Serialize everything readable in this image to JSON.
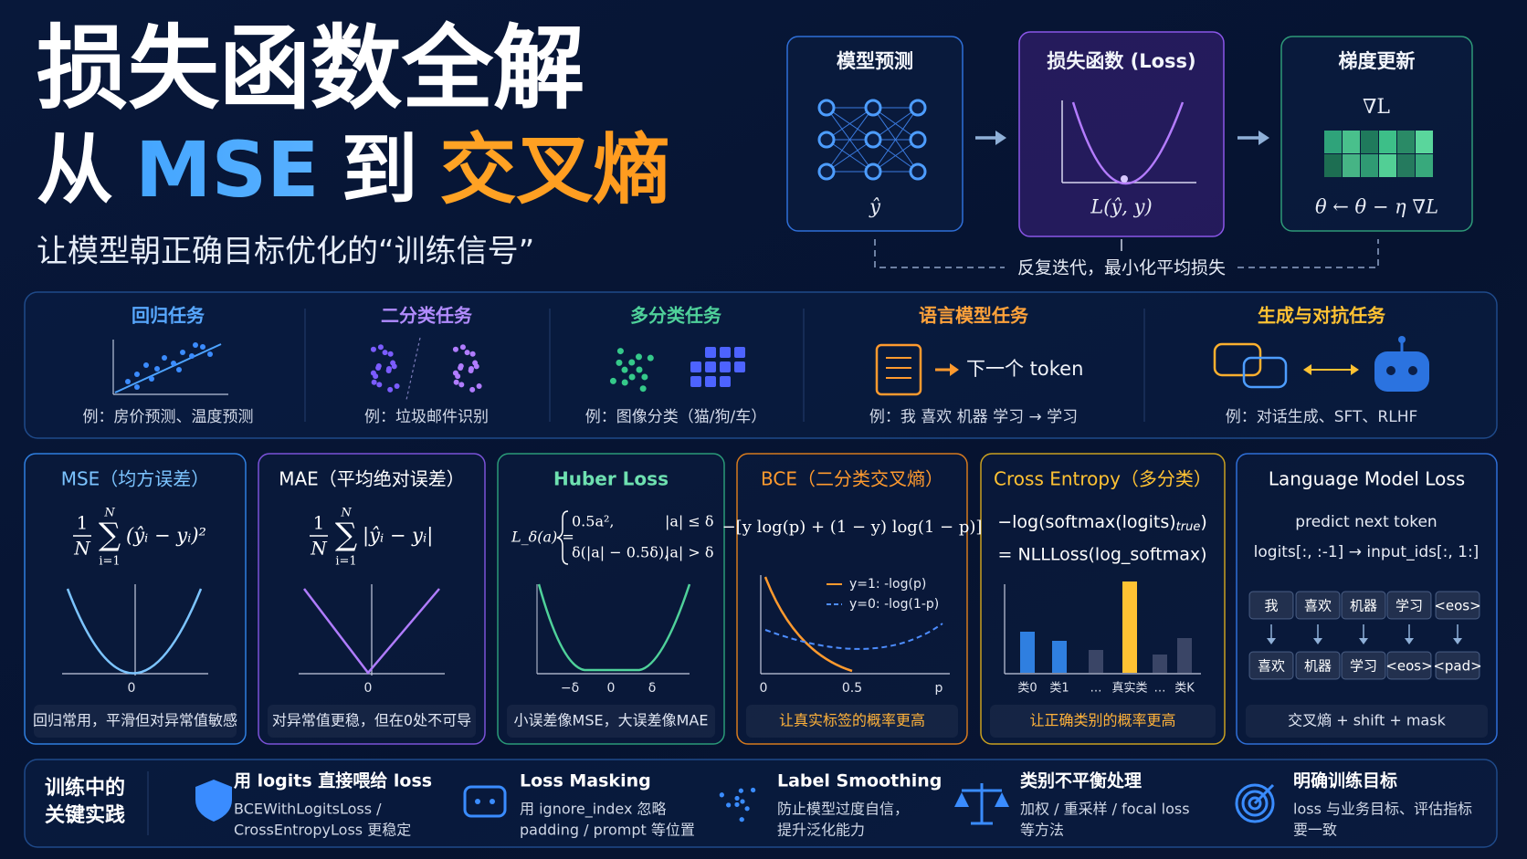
{
  "header": {
    "title": "损失函数全解",
    "title_line2": {
      "from": "从",
      "start": "MSE",
      "to": "到",
      "end": "交叉熵"
    },
    "subtitle": "让模型朝正确目标优化的“训练信号”"
  },
  "pipeline": {
    "steps": [
      {
        "title": "模型预测",
        "output": "ŷ"
      },
      {
        "title": "损失函数 (Loss)",
        "output": "L(ŷ, y)"
      },
      {
        "title": "梯度更新",
        "gradient": "∇L",
        "output": "θ ← θ − η ∇L"
      }
    ],
    "loop_label": "反复迭代，最小化平均损失"
  },
  "tasks": [
    {
      "title": "回归任务",
      "example": "例：房价预测、温度预测"
    },
    {
      "title": "二分类任务",
      "example": "例：垃圾邮件识别"
    },
    {
      "title": "多分类任务",
      "example": "例：图像分类（猫/狗/车）"
    },
    {
      "title": "语言模型任务",
      "illustration": "下一个 token",
      "example": "例：我 喜欢 机器 学习 → 学习"
    },
    {
      "title": "生成与对抗任务",
      "example": "例：对话生成、SFT、RLHF"
    }
  ],
  "losses": [
    {
      "title": "MSE（均方误差）",
      "formula": {
        "numerator": "1",
        "denominator": "N",
        "sum_top": "N",
        "sum": "∑",
        "sum_bottom": "i=1",
        "term": "(ŷᵢ − yᵢ)²"
      },
      "x_labels": [
        "0"
      ],
      "footer": "回归常用，平滑但对异常值敏感"
    },
    {
      "title": "MAE（平均绝对误差）",
      "formula": {
        "numerator": "1",
        "denominator": "N",
        "sum_top": "N",
        "sum": "∑",
        "sum_bottom": "i=1",
        "term": "|ŷᵢ − yᵢ|"
      },
      "x_labels": [
        "0"
      ],
      "footer": "对异常值更稳，但在0处不可导"
    },
    {
      "title": "Huber Loss",
      "formula": {
        "lhs": "L_δ(a) =",
        "cases": [
          [
            "0.5a²,",
            "|a| ≤ δ"
          ],
          [
            "δ(|a| − 0.5δ),",
            "|a| > δ"
          ]
        ]
      },
      "x_labels": [
        "−δ",
        "0",
        "δ"
      ],
      "footer": "小误差像MSE，大误差像MAE"
    },
    {
      "title": "BCE（二分类交叉熵）",
      "formula": "−[y log(p) + (1 − y) log(1 − p)]",
      "legend": [
        "y=1: -log(p)",
        "y=0: -log(1-p)"
      ],
      "x_labels": [
        "0",
        "0.5",
        "p"
      ],
      "footer": "让真实标签的概率更高"
    },
    {
      "title": "Cross Entropy（多分类）",
      "formula": {
        "main": "−log(softmax(logits)",
        "subscript": "true",
        "close": ")",
        "second": "= NLLLoss(log_softmax)"
      },
      "x_labels": [
        "类0",
        "类1",
        "…",
        "真实类",
        "…",
        "类K"
      ],
      "footer": "让正确类别的概率更高"
    },
    {
      "title": "Language Model Loss",
      "subtitle": "predict next token",
      "formula": "logits[:, :-1] → input_ids[:, 1:]",
      "tokens_input": [
        "我",
        "喜欢",
        "机器",
        "学习",
        "<eos>"
      ],
      "tokens_target": [
        "喜欢",
        "机器",
        "学习",
        "<eos>",
        "<pad>"
      ],
      "footer": "交叉熵 + shift + mask"
    }
  ],
  "practices": {
    "heading": [
      "训练中的",
      "关键实践"
    ],
    "items": [
      {
        "title": "用 logits 直接喂给 loss",
        "desc": [
          "BCEWithLogitsLoss /",
          "CrossEntropyLoss 更稳定"
        ]
      },
      {
        "title": "Loss Masking",
        "desc": [
          "用 ignore_index 忽略",
          "padding / prompt 等位置"
        ]
      },
      {
        "title": "Label Smoothing",
        "desc": [
          "防止模型过度自信，",
          "提升泛化能力"
        ]
      },
      {
        "title": "类别不平衡处理",
        "desc": [
          "加权 / 重采样 / focal loss",
          "等方法"
        ]
      },
      {
        "title": "明确训练目标",
        "desc": [
          "loss 与业务目标、评估指标",
          "要一致"
        ]
      }
    ]
  }
}
